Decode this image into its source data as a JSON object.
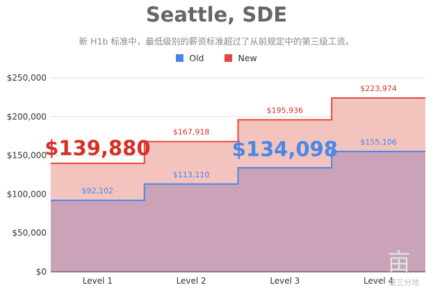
{
  "title": "Seattle, SDE",
  "subtitle": "新 H1b 标准中，最低级别的薪资标准超过了从前规定中的第三级工资。",
  "legend": {
    "old": "Old",
    "new": "New"
  },
  "colors": {
    "old_line": "#4a86e8",
    "new_line": "#e8453c",
    "old_fill": "#c8a1b8",
    "new_fill": "#f2c0bb",
    "old_label": "#4a86e8",
    "new_label": "#d93025"
  },
  "highlights": {
    "new_level1": "$139,880",
    "old_level3": "$134,098"
  },
  "watermark": {
    "text": "留三分地"
  },
  "chart_data": {
    "type": "area",
    "step": true,
    "categories": [
      "Level 1",
      "Level 2",
      "Level 3",
      "Level 4"
    ],
    "series": [
      {
        "name": "Old",
        "values": [
          92102,
          113110,
          134098,
          155106
        ],
        "labels": [
          "$92,102",
          "$113,110",
          "$134,098",
          "$155,106"
        ]
      },
      {
        "name": "New",
        "values": [
          139880,
          167918,
          195936,
          223974
        ],
        "labels": [
          "$139,880",
          "$167,918",
          "$195,936",
          "$223,974"
        ]
      }
    ],
    "ylim": [
      0,
      250000
    ],
    "yticks": [
      0,
      50000,
      100000,
      150000,
      200000,
      250000
    ],
    "ytick_labels": [
      "$0",
      "$50,000",
      "$100,000",
      "$150,000",
      "$200,000",
      "$250,000"
    ],
    "grid": true,
    "legend_position": "top"
  }
}
